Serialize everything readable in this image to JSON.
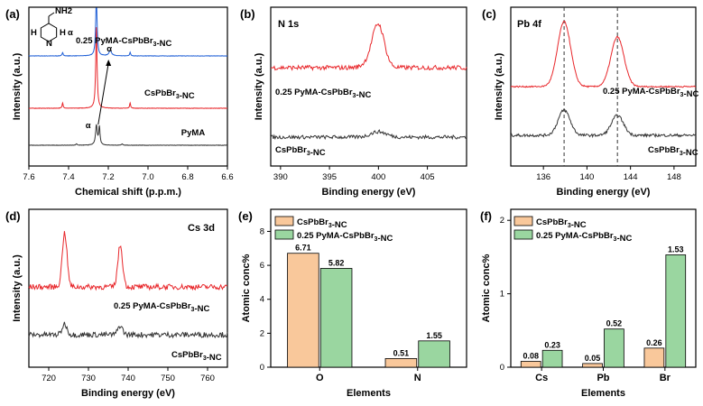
{
  "colors": {
    "red": "#e8262a",
    "black": "#333333",
    "blue": "#1f5fd6",
    "orange": "#f9c89b",
    "green": "#9ad6a0"
  },
  "chart_data": [
    {
      "panel": "(a)",
      "type": "line",
      "xlabel": "Chemical shift (p.p.m.)",
      "ylabel": "Intensity (a.u.)",
      "xlim": [
        7.6,
        6.6
      ],
      "xticks": [
        "7.6",
        "7.4",
        "7.2",
        "7.0",
        "6.8",
        "6.6"
      ],
      "series": [
        {
          "name": "0.25 PyMA-CsPbBr3-NC",
          "color": "blue"
        },
        {
          "name": "CsPbBr3-NC",
          "color": "red"
        },
        {
          "name": "PyMA",
          "color": "black"
        }
      ],
      "annotations": [
        "α",
        "α",
        "α"
      ],
      "molecule": {
        "nh2": "NH2",
        "h_left": "H",
        "h_right": "H",
        "n": "N"
      }
    },
    {
      "panel": "(b)",
      "type": "line",
      "title": "N 1s",
      "xlabel": "Binding energy (eV)",
      "ylabel": "Intensity (a.u.)",
      "xlim": [
        389,
        409
      ],
      "xticks": [
        "390",
        "395",
        "400",
        "405"
      ],
      "series": [
        {
          "name": "0.25 PyMA-CsPbBr3-NC",
          "color": "red"
        },
        {
          "name": "CsPbBr3-NC",
          "color": "black"
        }
      ]
    },
    {
      "panel": "(c)",
      "type": "line",
      "title": "Pb 4f",
      "xlabel": "Binding energy (eV)",
      "ylabel": "Intensity (a.u.)",
      "xlim": [
        133,
        150
      ],
      "xticks": [
        "136",
        "140",
        "144",
        "148"
      ],
      "dashed_lines": [
        137.9,
        142.8
      ],
      "series": [
        {
          "name": "0.25 PyMA-CsPbBr3-NC",
          "color": "red"
        },
        {
          "name": "CsPbBr3-NC",
          "color": "black"
        }
      ]
    },
    {
      "panel": "(d)",
      "type": "line",
      "title": "Cs 3d",
      "xlabel": "Binding energy (eV)",
      "ylabel": "Intensity (a.u.)",
      "xlim": [
        715,
        765
      ],
      "xticks": [
        "720",
        "730",
        "740",
        "750",
        "760"
      ],
      "series": [
        {
          "name": "0.25 PyMA-CsPbBr3-NC",
          "color": "red"
        },
        {
          "name": "CsPbBr3-NC",
          "color": "black"
        }
      ]
    },
    {
      "panel": "(e)",
      "type": "bar",
      "xlabel": "Elements",
      "ylabel": "Atomic conc%",
      "ylim": [
        0,
        9.3
      ],
      "yticks": [
        "0",
        "2",
        "4",
        "6",
        "8"
      ],
      "categories": [
        "O",
        "N"
      ],
      "series": [
        {
          "name": "CsPbBr3-NC",
          "color": "orange",
          "values": [
            6.71,
            0.51
          ],
          "labels": [
            "6.71",
            "0.51"
          ]
        },
        {
          "name": "0.25 PyMA-CsPbBr3-NC",
          "color": "green",
          "values": [
            5.82,
            1.55
          ],
          "labels": [
            "5.82",
            "1.55"
          ]
        }
      ]
    },
    {
      "panel": "(f)",
      "type": "bar",
      "xlabel": "Elements",
      "ylabel": "Atomic conc%",
      "ylim": [
        0,
        2.15
      ],
      "yticks": [
        "0",
        "1",
        "2"
      ],
      "categories": [
        "Cs",
        "Pb",
        "Br"
      ],
      "series": [
        {
          "name": "CsPbBr3-NC",
          "color": "orange",
          "values": [
            0.08,
            0.05,
            0.26
          ],
          "labels": [
            "0.08",
            "0.05",
            "0.26"
          ]
        },
        {
          "name": "0.25 PyMA-CsPbBr3-NC",
          "color": "green",
          "values": [
            0.23,
            0.52,
            1.53
          ],
          "labels": [
            "0.23",
            "0.52",
            "1.53"
          ]
        }
      ]
    }
  ]
}
